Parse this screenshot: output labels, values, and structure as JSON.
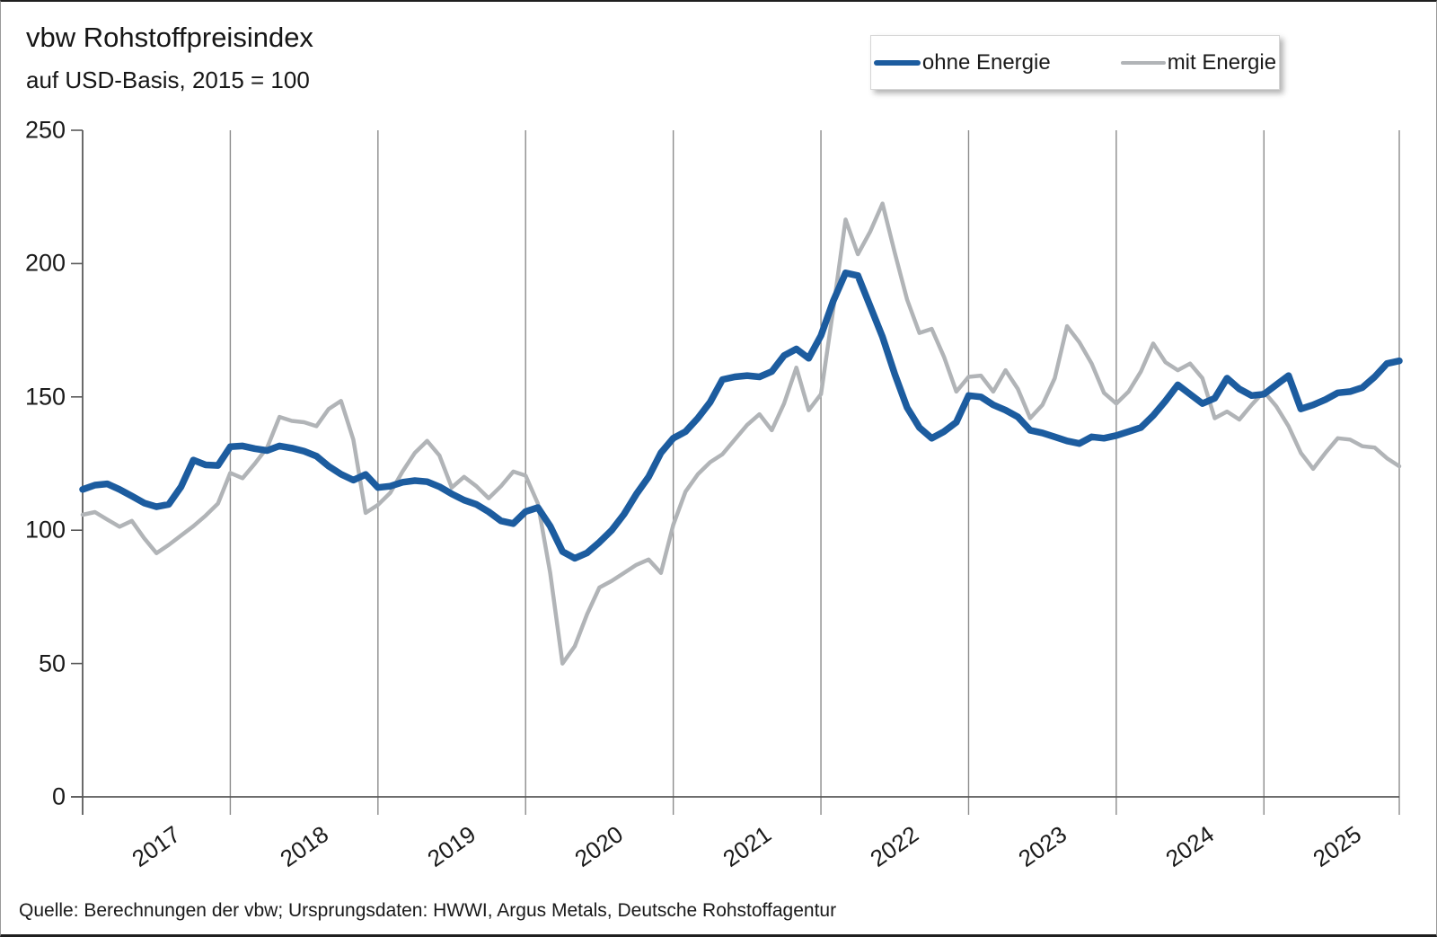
{
  "title": "vbw Rohstoffpreisindex",
  "subtitle": "auf USD-Basis, 2015 = 100",
  "source": "Quelle: Berechnungen der vbw; Ursprungsdaten: HWWI, Argus Metals, Deutsche Rohstoffagentur",
  "legend": {
    "item1": "ohne Energie",
    "item2": "mit Energie"
  },
  "colors": {
    "ohne_energie": "#1c5c9f",
    "mit_energie": "#b1b4b7",
    "axis": "#595959",
    "grid": "#8c8c8c",
    "text": "#1a1a1a"
  },
  "chart_data": {
    "type": "line",
    "title": "vbw Rohstoffpreisindex",
    "subtitle": "auf USD-Basis, 2015 = 100",
    "x_start": "2017-01",
    "x_end": "2025-12",
    "x_frequency": "monthly",
    "x_tick_labels": [
      "2017",
      "2018",
      "2019",
      "2020",
      "2021",
      "2022",
      "2023",
      "2024",
      "2025"
    ],
    "y_ticks": [
      0,
      50,
      100,
      150,
      200,
      250
    ],
    "ylim": [
      0,
      250
    ],
    "grid": "vertical-yearly",
    "legend_position": "top-right",
    "series": [
      {
        "name": "ohne Energie",
        "color": "#1c5c9f",
        "stroke_width": 7.5,
        "values": [
          115.3,
          116.9,
          117.4,
          115.3,
          112.8,
          110.2,
          108.8,
          109.7,
          116.3,
          126.3,
          124.5,
          124.3,
          131.3,
          131.6,
          130.6,
          129.9,
          131.6,
          130.8,
          129.6,
          127.8,
          124.0,
          121.0,
          118.8,
          120.9,
          116.0,
          116.5,
          118.0,
          118.6,
          118.2,
          116.3,
          113.6,
          111.3,
          109.7,
          106.9,
          103.5,
          102.5,
          107.0,
          108.5,
          101.5,
          92.0,
          89.5,
          91.5,
          95.5,
          100.0,
          106.0,
          113.5,
          120.0,
          129.0,
          134.5,
          137.0,
          142.0,
          148.0,
          156.5,
          157.5,
          158.0,
          157.5,
          159.5,
          165.5,
          168.0,
          164.5,
          173.0,
          186.0,
          196.5,
          195.5,
          184.0,
          172.5,
          158.5,
          146.0,
          138.5,
          134.5,
          137.0,
          140.5,
          150.5,
          150.0,
          147.0,
          145.0,
          142.5,
          137.5,
          136.5,
          135.0,
          133.5,
          132.5,
          135.0,
          134.5,
          135.5,
          137.0,
          138.5,
          143.0,
          148.5,
          154.5,
          151.0,
          147.5,
          149.5,
          157.0,
          153.0,
          150.5,
          151.0,
          154.5,
          158.0,
          145.5,
          147.0,
          149.0,
          151.5,
          152.0,
          153.5,
          157.5,
          162.5,
          163.5
        ]
      },
      {
        "name": "mit Energie",
        "color": "#b1b4b7",
        "stroke_width": 4.5,
        "values": [
          105.8,
          106.8,
          104.0,
          101.3,
          103.5,
          97.0,
          91.4,
          94.5,
          98.0,
          101.5,
          105.5,
          110.0,
          121.5,
          119.5,
          125.0,
          131.0,
          142.5,
          141.0,
          140.5,
          139.0,
          145.5,
          148.5,
          134.0,
          106.5,
          109.5,
          114.0,
          122.0,
          129.0,
          133.5,
          128.0,
          116.0,
          120.0,
          116.5,
          112.0,
          116.5,
          122.0,
          120.5,
          110.0,
          84.0,
          50.0,
          56.5,
          68.5,
          78.5,
          81.0,
          84.0,
          87.0,
          89.0,
          84.0,
          102.0,
          114.5,
          121.0,
          125.5,
          128.5,
          134.0,
          139.5,
          143.5,
          137.5,
          147.5,
          161.0,
          145.0,
          151.0,
          183.0,
          216.5,
          203.5,
          212.0,
          222.5,
          204.0,
          186.5,
          174.0,
          175.5,
          165.0,
          152.0,
          157.5,
          158.0,
          152.0,
          160.0,
          153.0,
          142.0,
          147.0,
          157.0,
          176.5,
          170.5,
          162.5,
          151.5,
          147.5,
          152.0,
          159.5,
          170.0,
          163.0,
          160.0,
          162.5,
          157.0,
          142.0,
          144.5,
          141.5,
          147.0,
          152.0,
          146.5,
          139.0,
          129.0,
          123.0,
          129.0,
          134.5,
          134.0,
          131.5,
          131.0,
          127.0,
          124.0
        ]
      }
    ]
  }
}
